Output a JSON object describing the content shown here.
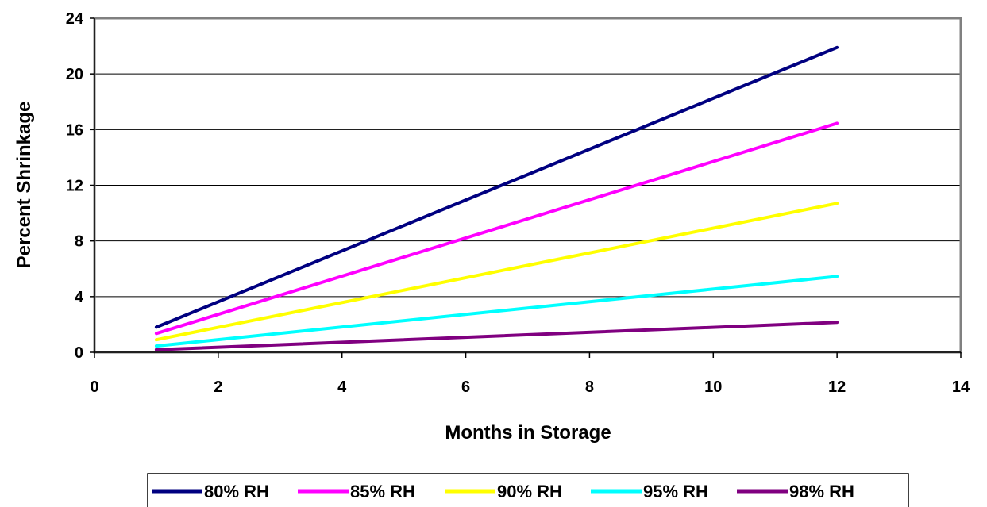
{
  "chart_data": {
    "type": "line",
    "title": "",
    "xlabel": "Months in Storage",
    "ylabel": "Percent Shrinkage",
    "xlim": [
      0,
      14
    ],
    "ylim": [
      0,
      24
    ],
    "xticks": [
      0,
      2,
      4,
      6,
      8,
      10,
      12,
      14
    ],
    "yticks": [
      0,
      4,
      8,
      12,
      16,
      20,
      24
    ],
    "grid": "horizontal",
    "legend_position": "bottom",
    "x": [
      1,
      12
    ],
    "series": [
      {
        "name": "80% RH",
        "color": "#000080",
        "values": [
          1.8,
          21.9
        ]
      },
      {
        "name": "85% RH",
        "color": "#FF00FF",
        "values": [
          1.35,
          16.45
        ]
      },
      {
        "name": "90% RH",
        "color": "#FFFF00",
        "values": [
          0.9,
          10.7
        ]
      },
      {
        "name": "95% RH",
        "color": "#00FFFF",
        "values": [
          0.45,
          5.45
        ]
      },
      {
        "name": "98% RH",
        "color": "#800080",
        "values": [
          0.18,
          2.15
        ]
      }
    ]
  }
}
